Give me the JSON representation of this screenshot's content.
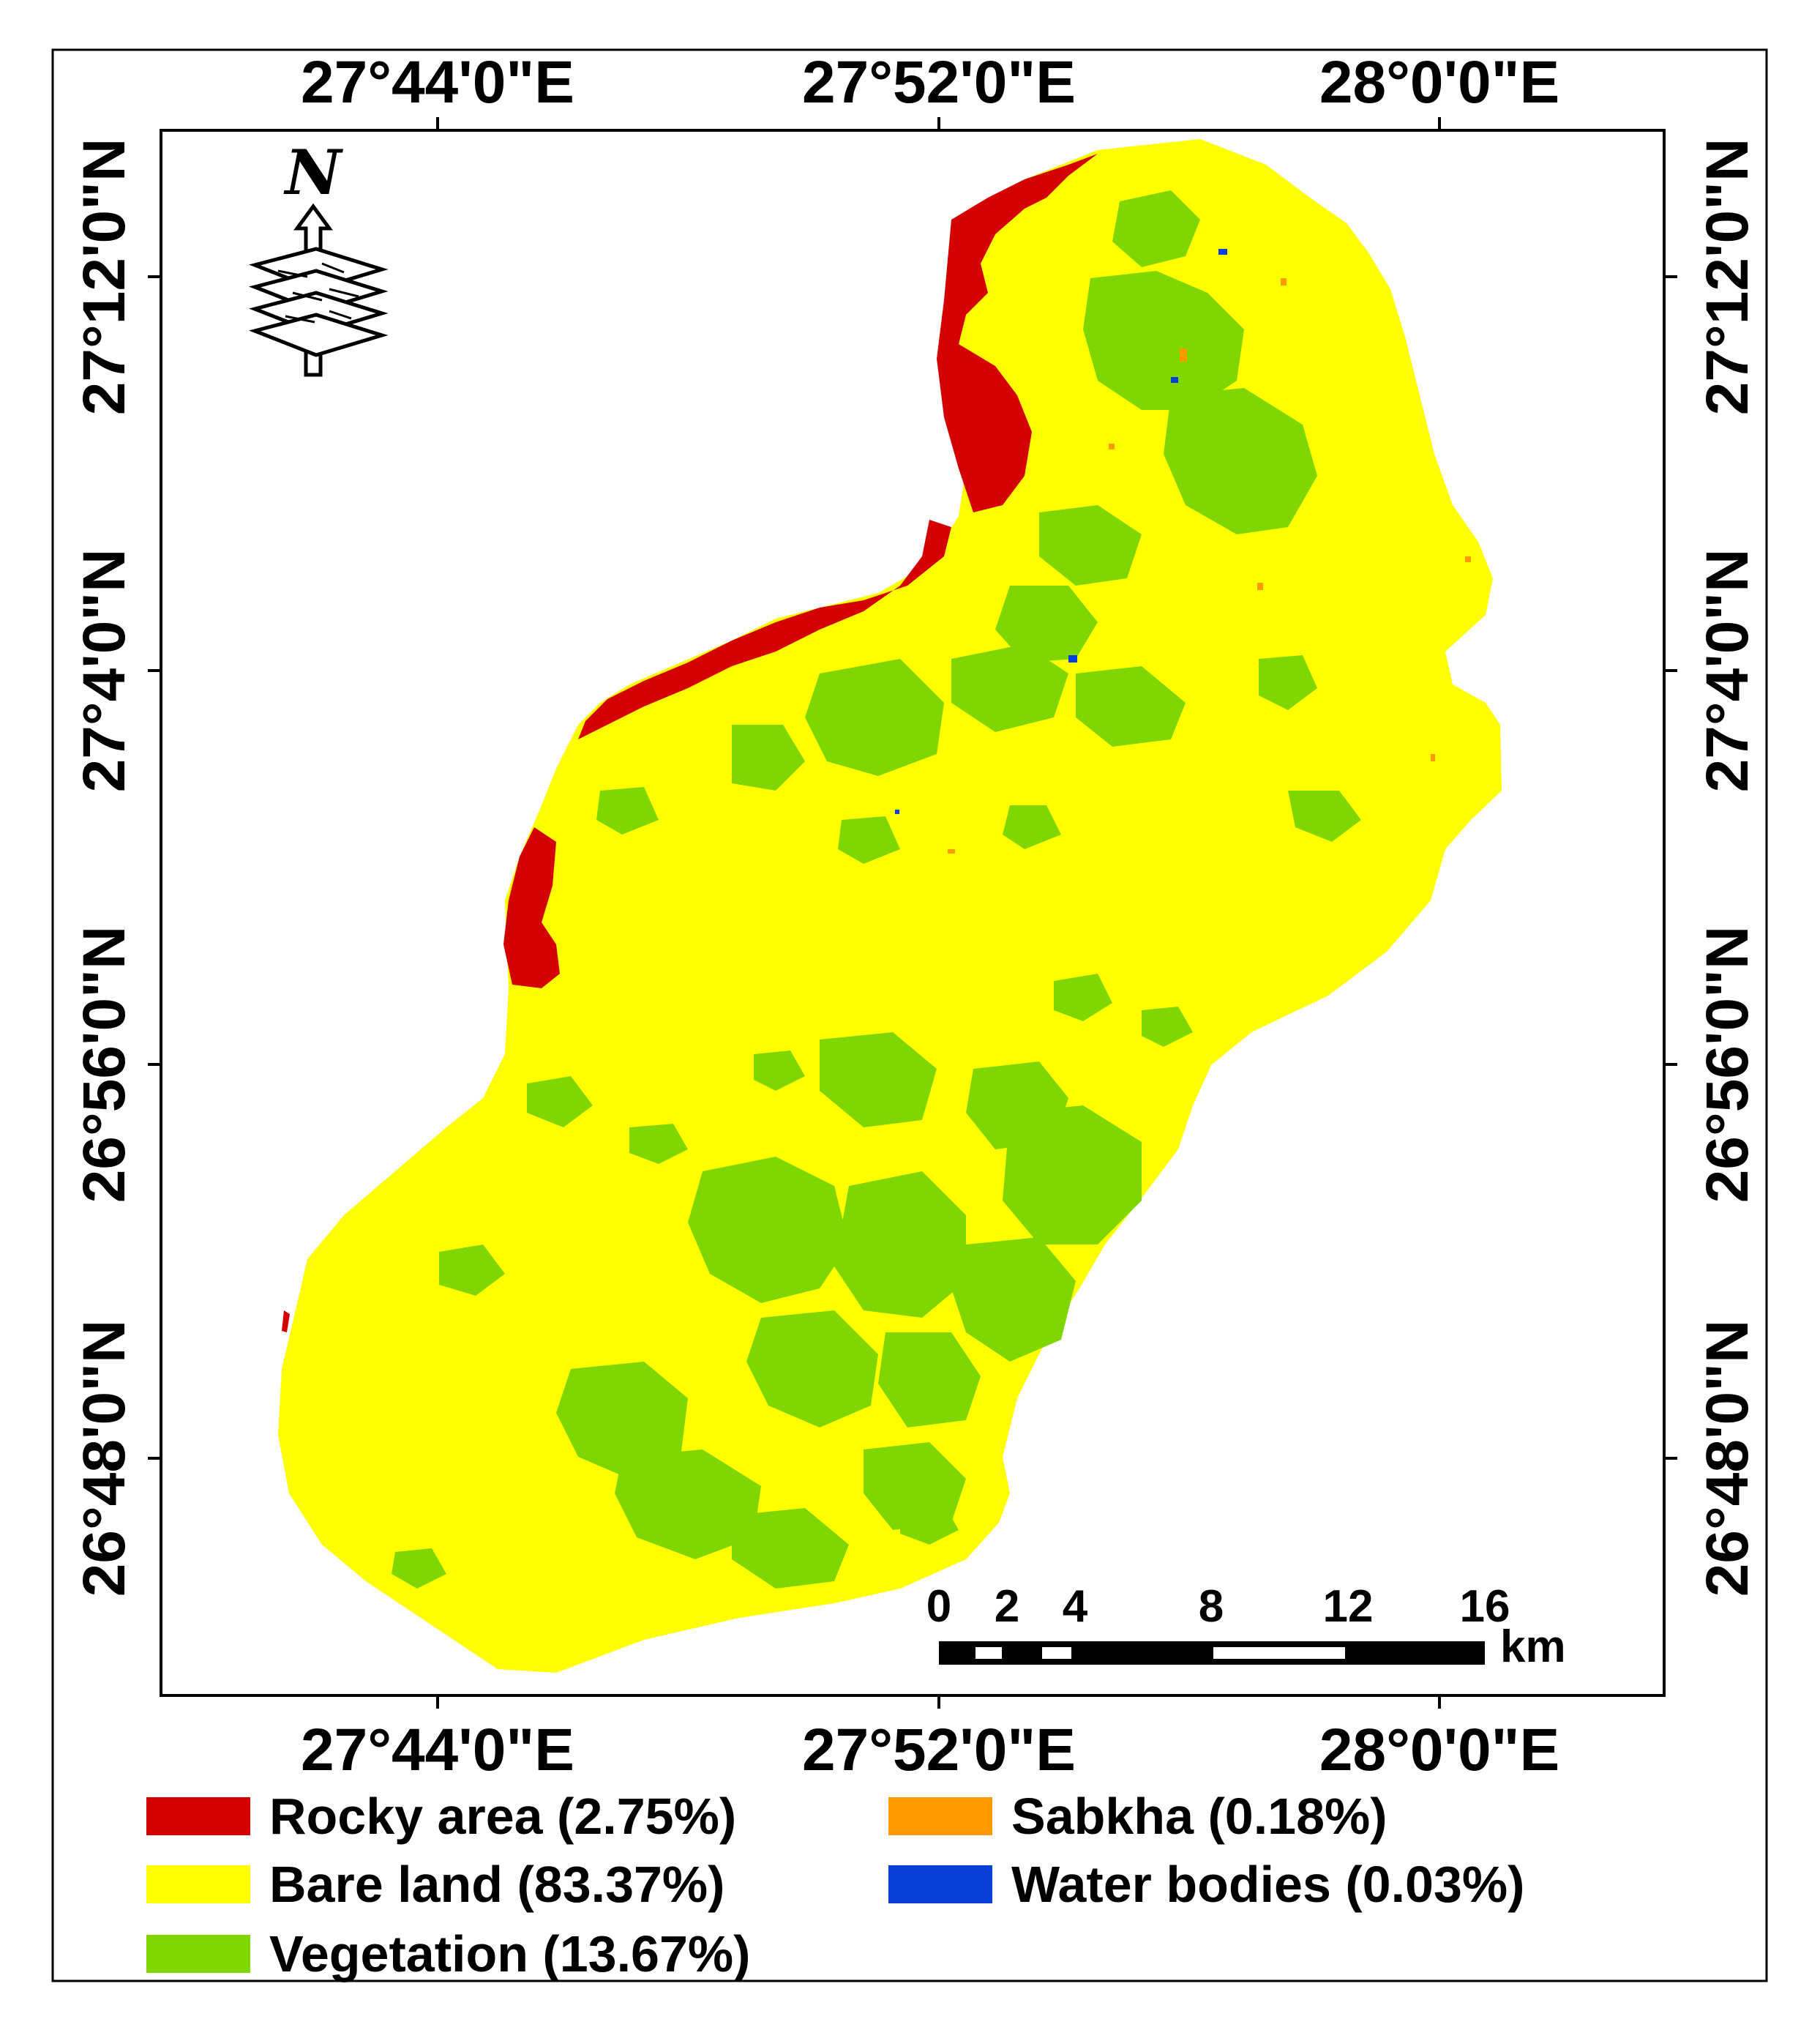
{
  "map": {
    "longitude_labels": [
      "27°44'0\"E",
      "27°52'0\"E",
      "28°0'0\"E"
    ],
    "latitude_labels": [
      "27°12'0\"N",
      "27°4'0\"N",
      "26°56'0\"N",
      "26°48'0\"N"
    ],
    "north_arrow_label": "N",
    "scale_bar": {
      "ticks": [
        "0",
        "2",
        "4",
        "8",
        "12",
        "16"
      ],
      "unit": "km"
    },
    "legend": [
      {
        "label": "Rocky area (2.75%)",
        "color": "#d40000"
      },
      {
        "label": "Bare land (83.37%)",
        "color": "#ffff00"
      },
      {
        "label": "Vegetation (13.67%)",
        "color": "#7fd600"
      },
      {
        "label": "Sabkha (0.18%)",
        "color": "#ff9a00"
      },
      {
        "label": "Water bodies (0.03%)",
        "color": "#0a3fd8"
      }
    ]
  },
  "colors": {
    "bare_land": "#ffff00",
    "rocky": "#d40000",
    "vegetation": "#7fd600",
    "sabkha": "#ff9a00",
    "water": "#0a3fd8"
  }
}
